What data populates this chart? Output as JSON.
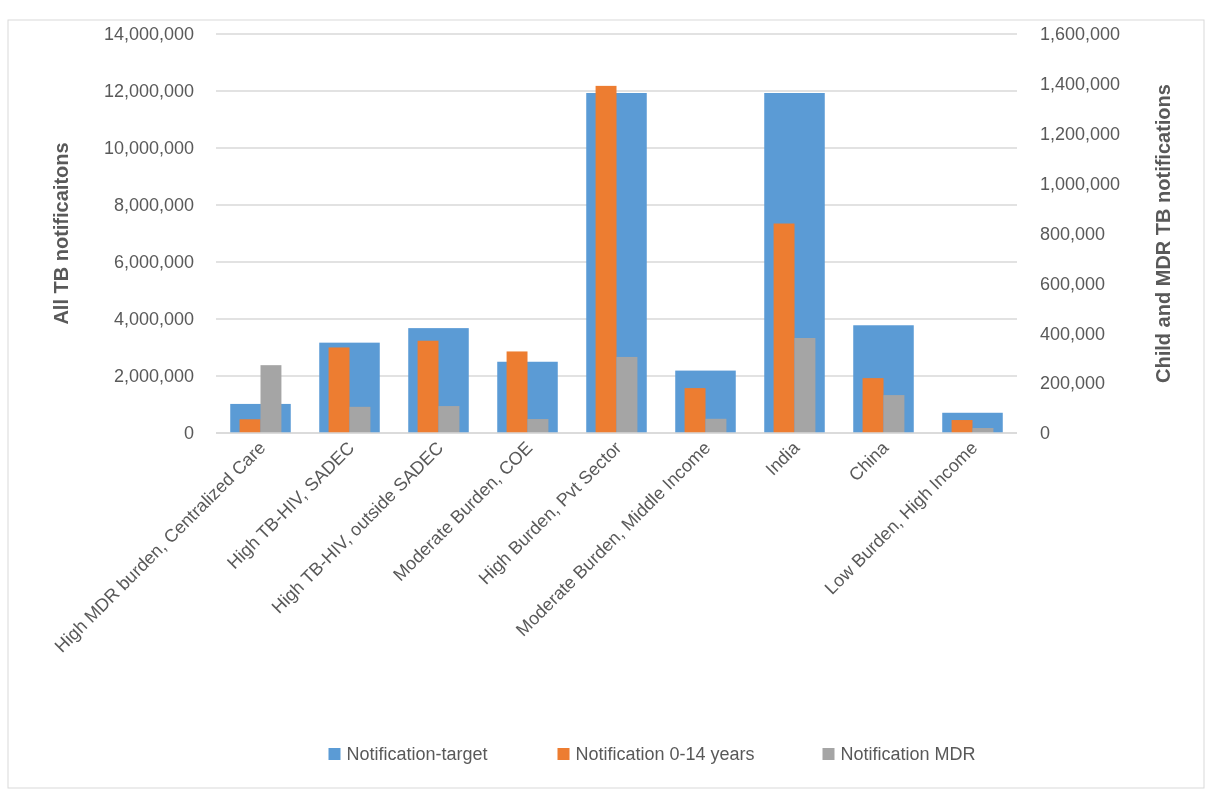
{
  "chart_data": {
    "type": "bar",
    "ylabel": "All TB notificaitons",
    "y2label": "Child and MDR TB notifications",
    "categories": [
      "High MDR burden, Centralized Care",
      "High TB-HIV, SADEC",
      "High TB-HIV, outside SADEC",
      "Moderate Burden, COE",
      "High Burden, Pvt Sector",
      "Moderate Burden, Middle Income",
      "India",
      "China",
      "Low Burden, High Income"
    ],
    "series": [
      {
        "name": "Notification-target",
        "color": "#5b9bd5",
        "values": [
          1020000,
          3170000,
          3680000,
          2500000,
          11930000,
          2190000,
          11930000,
          3780000,
          710000
        ]
      },
      {
        "name": "Notification 0-14 years",
        "color": "#ed7d31",
        "axis": "y2",
        "values": [
          55000,
          343000,
          370000,
          327000,
          1392000,
          180000,
          840000,
          220000,
          52000
        ]
      },
      {
        "name": "Notification MDR",
        "color": "#a5a5a5",
        "axis": "y2",
        "values": [
          272000,
          105000,
          108000,
          56000,
          305000,
          57000,
          381000,
          152000,
          20000
        ]
      }
    ],
    "ylim": [
      0,
      14000000
    ],
    "yticks": [
      {
        "value": 0,
        "label": "0"
      },
      {
        "value": 2000000,
        "label": "2,000,000"
      },
      {
        "value": 4000000,
        "label": "4,000,000"
      },
      {
        "value": 6000000,
        "label": "6,000,000"
      },
      {
        "value": 8000000,
        "label": "8,000,000"
      },
      {
        "value": 10000000,
        "label": "10,000,000"
      },
      {
        "value": 12000000,
        "label": "12,000,000"
      },
      {
        "value": 14000000,
        "label": "14,000,000"
      }
    ],
    "y2lim": [
      0,
      1600000
    ],
    "y2ticks": [
      {
        "value": 0,
        "label": "0"
      },
      {
        "value": 200000,
        "label": "200,000"
      },
      {
        "value": 400000,
        "label": "400,000"
      },
      {
        "value": 600000,
        "label": "600,000"
      },
      {
        "value": 800000,
        "label": "800,000"
      },
      {
        "value": 1000000,
        "label": "1,000,000"
      },
      {
        "value": 1200000,
        "label": "1,200,000"
      },
      {
        "value": 1400000,
        "label": "1,400,000"
      },
      {
        "value": 1600000,
        "label": "1,600,000"
      }
    ],
    "grid": "y",
    "legend": "bottom"
  }
}
